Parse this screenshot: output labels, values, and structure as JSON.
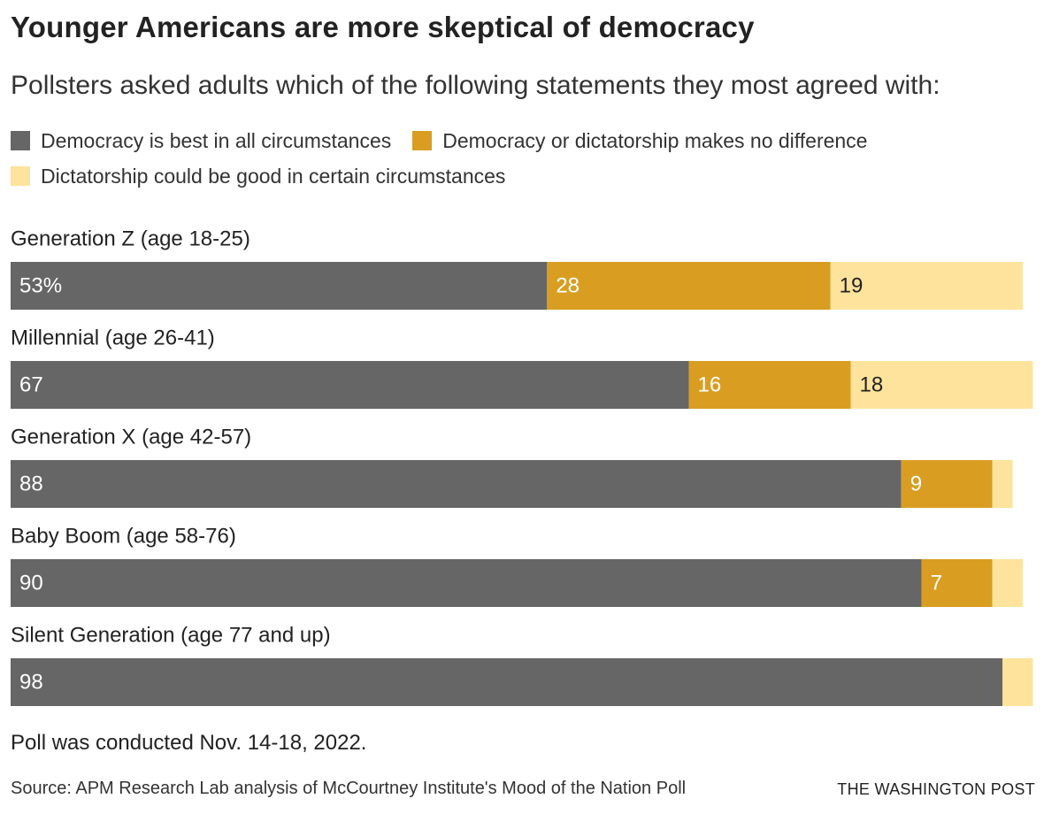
{
  "chart_data": {
    "type": "stacked-bar-horizontal",
    "title": "Younger Americans are more skeptical of democracy",
    "subtitle": "Pollsters asked adults which of the following statements they most agreed with:",
    "categories": [
      "Generation Z (age 18-25)",
      "Millennial (age 26-41)",
      "Generation X (age 42-57)",
      "Baby Boom (age 58-76)",
      "Silent Generation (age 77 and up)"
    ],
    "series": [
      {
        "name": "Democracy is best in all circumstances",
        "color": "#666666",
        "label_color": "#ffffff",
        "values": [
          53,
          67,
          88,
          90,
          98
        ],
        "value_labels": [
          "53%",
          "67",
          "88",
          "90",
          "98"
        ]
      },
      {
        "name": "Democracy or dictatorship makes no difference",
        "color": "#d99e21",
        "label_color": "#ffffff",
        "values": [
          28,
          16,
          9,
          7,
          0
        ],
        "value_labels": [
          "28",
          "16",
          "9",
          "7",
          null
        ]
      },
      {
        "name": "Dictatorship could be good in certain circumstances",
        "color": "#fee39c",
        "label_color": "#222222",
        "values": [
          19,
          18,
          2,
          3,
          3
        ],
        "value_labels": [
          "19",
          "18",
          null,
          null,
          null
        ]
      }
    ],
    "xlim": [
      0,
      100
    ],
    "note": "Poll was conducted Nov. 14-18, 2022.",
    "source": "Source: APM Research Lab analysis of McCourtney Institute's Mood of the Nation Poll",
    "publisher": "THE WASHINGTON POST"
  }
}
